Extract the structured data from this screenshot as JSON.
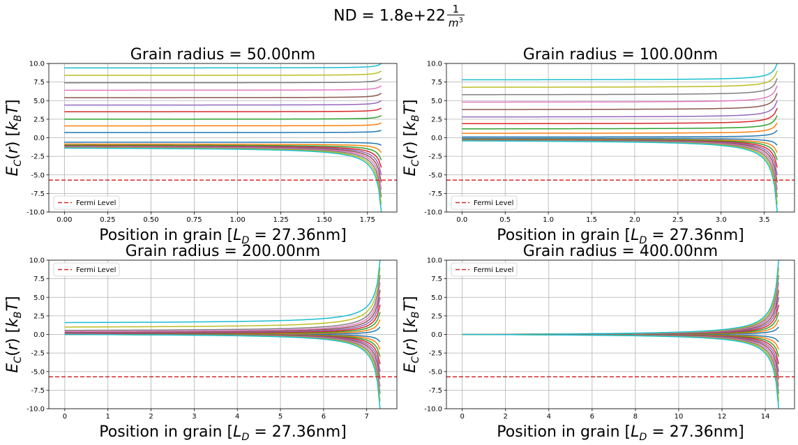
{
  "figure": {
    "suptitle_prefix": "ND = 1.8e+22",
    "suptitle_unit_num": "1",
    "suptitle_unit_den": "m",
    "suptitle_unit_exp": "3"
  },
  "colors": {
    "fermi": "#d62728",
    "cycle": [
      "#1f77b4",
      "#ff7f0e",
      "#2ca02c",
      "#d62728",
      "#9467bd",
      "#8c564b",
      "#e377c2",
      "#7f7f7f",
      "#bcbd22",
      "#17becf"
    ]
  },
  "chart_data": [
    {
      "type": "line",
      "title": "Grain radius = 50.00nm",
      "xlabel": "Position in grain [L_D = 27.36nm]",
      "ylabel": "E_C(r) [k_B T]",
      "xlim": [
        -0.09,
        1.92
      ],
      "ylim": [
        -10,
        10
      ],
      "xticks": [
        "0.00",
        "0.25",
        "0.50",
        "0.75",
        "1.00",
        "1.25",
        "1.50",
        "1.75"
      ],
      "yticks": [
        "-10.0",
        "-7.5",
        "-5.0",
        "-2.5",
        "0.0",
        "2.5",
        "5.0",
        "7.5",
        "10.0"
      ],
      "grid": true,
      "legend": {
        "entry": "Fermi Level",
        "placement": "lower left"
      },
      "fermi_level": -5.7,
      "x_end": 1.83,
      "upper_curves": [
        {
          "start": 0.7,
          "end": 1.0
        },
        {
          "start": 1.6,
          "end": 2.0
        },
        {
          "start": 2.5,
          "end": 3.0
        },
        {
          "start": 3.5,
          "end": 4.0
        },
        {
          "start": 4.4,
          "end": 5.0
        },
        {
          "start": 5.4,
          "end": 6.0
        },
        {
          "start": 6.4,
          "end": 7.0
        },
        {
          "start": 7.4,
          "end": 8.0
        },
        {
          "start": 8.4,
          "end": 9.0
        },
        {
          "start": 9.4,
          "end": 10.0
        }
      ],
      "lower_curves": [
        {
          "start": -0.6,
          "end": -1.0
        },
        {
          "start": -0.85,
          "end": -2.0
        },
        {
          "start": -1.0,
          "end": -3.0
        },
        {
          "start": -1.1,
          "end": -4.0
        },
        {
          "start": -1.15,
          "end": -5.0
        },
        {
          "start": -1.2,
          "end": -6.0
        },
        {
          "start": -1.25,
          "end": -7.0
        },
        {
          "start": -1.3,
          "end": -8.0
        },
        {
          "start": -1.35,
          "end": -9.0
        },
        {
          "start": -1.4,
          "end": -10.0
        }
      ]
    },
    {
      "type": "line",
      "title": "Grain radius = 100.00nm",
      "xlabel": "Position in grain [L_D = 27.36nm]",
      "ylabel": "E_C(r) [k_B T]",
      "xlim": [
        -0.18,
        3.85
      ],
      "ylim": [
        -10,
        10
      ],
      "xticks": [
        "0.0",
        "0.5",
        "1.0",
        "1.5",
        "2.0",
        "2.5",
        "3.0",
        "3.5"
      ],
      "yticks": [
        "-10.0",
        "-7.5",
        "-5.0",
        "-2.5",
        "0.0",
        "2.5",
        "5.0",
        "7.5",
        "10.0"
      ],
      "grid": true,
      "legend": {
        "entry": "Fermi Level",
        "placement": "lower left"
      },
      "fermi_level": -5.7,
      "x_end": 3.65,
      "upper_curves": [
        {
          "start": 0.1,
          "end": 1.0
        },
        {
          "start": 0.6,
          "end": 2.0
        },
        {
          "start": 1.2,
          "end": 3.0
        },
        {
          "start": 1.9,
          "end": 4.0
        },
        {
          "start": 2.8,
          "end": 5.0
        },
        {
          "start": 3.8,
          "end": 6.0
        },
        {
          "start": 4.8,
          "end": 7.0
        },
        {
          "start": 5.8,
          "end": 8.0
        },
        {
          "start": 6.8,
          "end": 9.0
        },
        {
          "start": 7.8,
          "end": 10.0
        }
      ],
      "lower_curves": [
        {
          "start": -0.1,
          "end": -1.0
        },
        {
          "start": -0.2,
          "end": -2.0
        },
        {
          "start": -0.25,
          "end": -3.0
        },
        {
          "start": -0.3,
          "end": -4.0
        },
        {
          "start": -0.32,
          "end": -5.0
        },
        {
          "start": -0.34,
          "end": -6.0
        },
        {
          "start": -0.36,
          "end": -7.0
        },
        {
          "start": -0.38,
          "end": -8.0
        },
        {
          "start": -0.4,
          "end": -9.0
        },
        {
          "start": -0.42,
          "end": -10.0
        }
      ]
    },
    {
      "type": "line",
      "title": "Grain radius = 200.00nm",
      "xlabel": "Position in grain [L_D = 27.36nm]",
      "ylabel": "E_C(r) [k_B T]",
      "xlim": [
        -0.37,
        7.7
      ],
      "ylim": [
        -10,
        10
      ],
      "xticks": [
        "0",
        "1",
        "2",
        "3",
        "4",
        "5",
        "6",
        "7"
      ],
      "yticks": [
        "-10.0",
        "-7.5",
        "-5.0",
        "-2.5",
        "0.0",
        "2.5",
        "5.0",
        "7.5",
        "10.0"
      ],
      "grid": true,
      "legend": {
        "entry": "Fermi Level",
        "placement": "upper left"
      },
      "fermi_level": -5.7,
      "x_end": 7.31,
      "upper_curves": [
        {
          "start": 0.0,
          "end": 1.0
        },
        {
          "start": 0.05,
          "end": 2.0
        },
        {
          "start": 0.1,
          "end": 3.0
        },
        {
          "start": 0.15,
          "end": 4.0
        },
        {
          "start": 0.22,
          "end": 5.0
        },
        {
          "start": 0.3,
          "end": 6.0
        },
        {
          "start": 0.4,
          "end": 7.0
        },
        {
          "start": 0.55,
          "end": 8.0
        },
        {
          "start": 1.0,
          "end": 9.0
        },
        {
          "start": 1.6,
          "end": 10.0
        }
      ],
      "lower_curves": [
        {
          "start": 0.0,
          "end": -1.0
        },
        {
          "start": 0.0,
          "end": -2.0
        },
        {
          "start": 0.0,
          "end": -3.0
        },
        {
          "start": 0.0,
          "end": -4.0
        },
        {
          "start": 0.0,
          "end": -5.0
        },
        {
          "start": 0.0,
          "end": -6.0
        },
        {
          "start": 0.0,
          "end": -7.0
        },
        {
          "start": 0.0,
          "end": -8.0
        },
        {
          "start": 0.0,
          "end": -9.0
        },
        {
          "start": 0.0,
          "end": -10.0
        }
      ]
    },
    {
      "type": "line",
      "title": "Grain radius = 400.00nm",
      "xlabel": "Position in grain [L_D = 27.36nm]",
      "ylabel": "E_C(r) [k_B T]",
      "xlim": [
        -0.73,
        15.35
      ],
      "ylim": [
        -10,
        10
      ],
      "xticks": [
        "0",
        "2",
        "4",
        "6",
        "8",
        "10",
        "12",
        "14"
      ],
      "yticks": [
        "-10.0",
        "-7.5",
        "-5.0",
        "-2.5",
        "0.0",
        "2.5",
        "5.0",
        "7.5",
        "10.0"
      ],
      "grid": true,
      "legend": {
        "entry": "Fermi Level",
        "placement": "upper left"
      },
      "fermi_level": -5.7,
      "x_end": 14.62,
      "upper_curves": [
        {
          "start": 0.0,
          "end": 1.0
        },
        {
          "start": 0.0,
          "end": 2.0
        },
        {
          "start": 0.0,
          "end": 3.0
        },
        {
          "start": 0.0,
          "end": 4.0
        },
        {
          "start": 0.0,
          "end": 5.0
        },
        {
          "start": 0.0,
          "end": 6.0
        },
        {
          "start": 0.0,
          "end": 7.0
        },
        {
          "start": 0.0,
          "end": 8.0
        },
        {
          "start": 0.0,
          "end": 9.0
        },
        {
          "start": 0.0,
          "end": 10.0
        }
      ],
      "lower_curves": [
        {
          "start": 0.0,
          "end": -1.0
        },
        {
          "start": 0.0,
          "end": -2.0
        },
        {
          "start": 0.0,
          "end": -3.0
        },
        {
          "start": 0.0,
          "end": -4.0
        },
        {
          "start": 0.0,
          "end": -5.0
        },
        {
          "start": 0.0,
          "end": -6.0
        },
        {
          "start": 0.0,
          "end": -7.0
        },
        {
          "start": 0.0,
          "end": -8.0
        },
        {
          "start": 0.0,
          "end": -9.0
        },
        {
          "start": 0.0,
          "end": -10.0
        }
      ]
    }
  ]
}
